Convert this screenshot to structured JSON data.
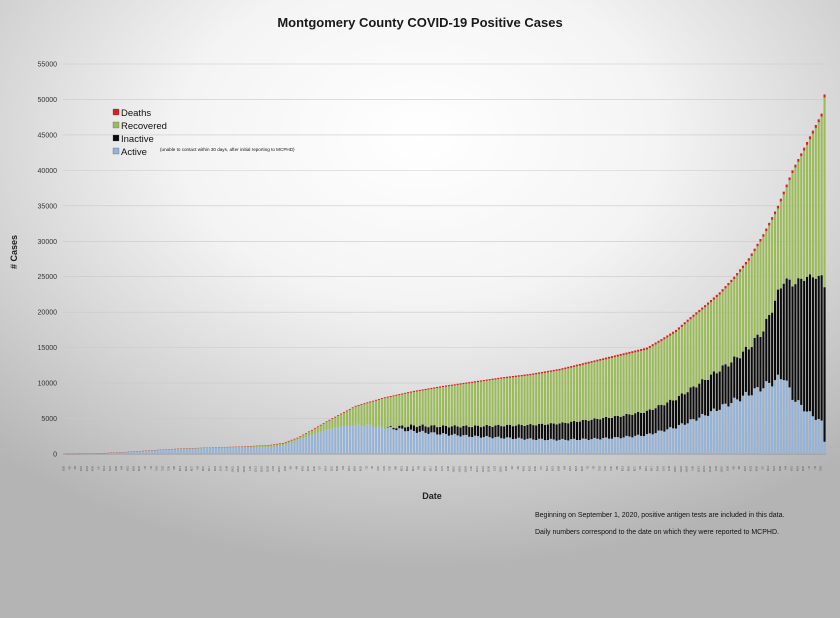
{
  "chart_data": {
    "type": "bar",
    "stacked": true,
    "title": "Montgomery County COVID-19 Positive Cases",
    "xlabel": "Date",
    "ylabel": "# Cases",
    "ylim": [
      0,
      55000
    ],
    "yticks": [
      0,
      5000,
      10000,
      15000,
      20000,
      25000,
      30000,
      35000,
      40000,
      45000,
      50000,
      55000
    ],
    "grid": true,
    "legend_position": "top-left",
    "series": [
      {
        "name": "Deaths",
        "color": "#d81e1e"
      },
      {
        "name": "Recovered",
        "color": "#9bbb59"
      },
      {
        "name": "Inactive",
        "color": "#0b0b0b",
        "note": "(unable to contact within 30 days, after initial reporting to MCPHD)"
      },
      {
        "name": "Active",
        "color": "#95b3d7"
      }
    ],
    "n_bars": 262,
    "total_curve": [
      [
        0,
        0
      ],
      [
        10,
        60
      ],
      [
        20,
        250
      ],
      [
        30,
        520
      ],
      [
        40,
        780
      ],
      [
        50,
        920
      ],
      [
        60,
        1050
      ],
      [
        70,
        1250
      ],
      [
        75,
        1550
      ],
      [
        80,
        2300
      ],
      [
        85,
        3400
      ],
      [
        90,
        4600
      ],
      [
        95,
        5700
      ],
      [
        100,
        6800
      ],
      [
        110,
        8000
      ],
      [
        120,
        8900
      ],
      [
        130,
        9600
      ],
      [
        140,
        10200
      ],
      [
        150,
        10800
      ],
      [
        160,
        11300
      ],
      [
        170,
        12000
      ],
      [
        180,
        13000
      ],
      [
        190,
        14000
      ],
      [
        200,
        15000
      ],
      [
        205,
        16200
      ],
      [
        210,
        17500
      ],
      [
        215,
        19300
      ],
      [
        220,
        21000
      ],
      [
        225,
        22800
      ],
      [
        230,
        25000
      ],
      [
        235,
        27600
      ],
      [
        240,
        31000
      ],
      [
        245,
        35000
      ],
      [
        250,
        40000
      ],
      [
        255,
        44000
      ],
      [
        260,
        48000
      ],
      [
        265,
        50000
      ],
      [
        270,
        51000
      ],
      [
        261,
        50700
      ]
    ],
    "active_curve": [
      [
        0,
        0
      ],
      [
        10,
        60
      ],
      [
        20,
        250
      ],
      [
        30,
        520
      ],
      [
        40,
        760
      ],
      [
        50,
        860
      ],
      [
        60,
        880
      ],
      [
        70,
        950
      ],
      [
        75,
        1200
      ],
      [
        80,
        1900
      ],
      [
        85,
        2700
      ],
      [
        90,
        3400
      ],
      [
        95,
        3900
      ],
      [
        100,
        4100
      ],
      [
        105,
        4000
      ],
      [
        110,
        3700
      ],
      [
        115,
        3500
      ],
      [
        120,
        3200
      ],
      [
        125,
        3000
      ],
      [
        130,
        2800
      ],
      [
        140,
        2500
      ],
      [
        150,
        2300
      ],
      [
        160,
        2100
      ],
      [
        170,
        2000
      ],
      [
        180,
        2100
      ],
      [
        190,
        2300
      ],
      [
        200,
        2700
      ],
      [
        210,
        3800
      ],
      [
        220,
        5500
      ],
      [
        230,
        7500
      ],
      [
        240,
        9500
      ],
      [
        247,
        11000
      ],
      [
        250,
        8000
      ],
      [
        255,
        6000
      ],
      [
        260,
        4500
      ],
      [
        265,
        3000
      ],
      [
        270,
        2200
      ],
      [
        275,
        2000
      ],
      [
        290,
        1800
      ],
      [
        300,
        1900
      ],
      [
        261,
        1800
      ]
    ],
    "inactive_curve": [
      [
        0,
        0
      ],
      [
        110,
        0
      ],
      [
        115,
        350
      ],
      [
        120,
        800
      ],
      [
        130,
        1100
      ],
      [
        140,
        1400
      ],
      [
        150,
        1700
      ],
      [
        160,
        2000
      ],
      [
        170,
        2300
      ],
      [
        180,
        2700
      ],
      [
        190,
        3000
      ],
      [
        200,
        3300
      ],
      [
        210,
        4000
      ],
      [
        220,
        5000
      ],
      [
        230,
        5800
      ],
      [
        235,
        6500
      ],
      [
        240,
        8000
      ],
      [
        245,
        12000
      ],
      [
        250,
        16000
      ],
      [
        255,
        19000
      ],
      [
        260,
        20500
      ],
      [
        261,
        21800
      ]
    ],
    "deaths_curve": [
      [
        0,
        0
      ],
      [
        40,
        20
      ],
      [
        80,
        90
      ],
      [
        120,
        150
      ],
      [
        160,
        200
      ],
      [
        200,
        270
      ],
      [
        230,
        330
      ],
      [
        261,
        420
      ]
    ],
    "x_tick_labels": [
      "3/26",
      "4/2",
      "4/9",
      "4/16",
      "4/23",
      "4/30",
      "5/7",
      "5/14",
      "5/21",
      "5/28",
      "6/4",
      "6/11",
      "6/18",
      "6/25",
      "7/2",
      "7/9",
      "7/16",
      "7/23",
      "7/30",
      "8/6",
      "8/13",
      "8/20",
      "8/27",
      "9/3",
      "9/10",
      "9/17",
      "9/24",
      "10/1",
      "10/8",
      "10/15",
      "10/22",
      "10/29",
      "11/5",
      "11/12",
      "11/19",
      "11/26",
      "12/3",
      "12/10"
    ]
  },
  "notes": [
    "Beginning on September 1, 2020, positive antigen tests are included in this data.",
    "Daily numbers correspond to the date on which they were reported to MCPHD."
  ]
}
